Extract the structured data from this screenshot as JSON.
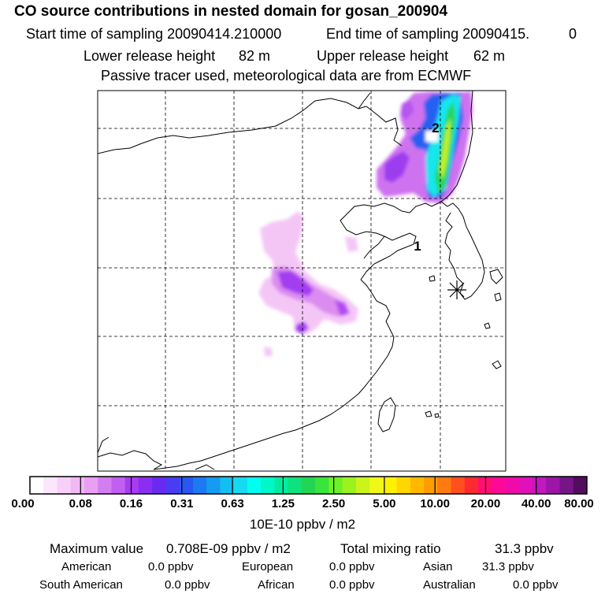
{
  "header": {
    "title": "CO  source contributions in nested domain for gosan_200904",
    "start_label": "Start time of sampling 20090414.210000",
    "end_label": "End time of sampling 20090415.",
    "end_value": "0",
    "lower_label": "Lower release height",
    "lower_value": "82 m",
    "upper_label": "Upper release height",
    "upper_value": "62 m",
    "note": "Passive tracer used, meteorological data are from ECMWF"
  },
  "map": {
    "markers": [
      {
        "label": "1"
      },
      {
        "label": "2"
      }
    ],
    "receptor_symbol": "star-icon"
  },
  "colorbar": {
    "colors": [
      "#ffffff",
      "#fbe6fb",
      "#f7d0f8",
      "#f2b8f5",
      "#e9a0f3",
      "#d27ef0",
      "#c35ff0",
      "#a83cf2",
      "#8a2ef0",
      "#6a2af0",
      "#4a3cf2",
      "#2a57f2",
      "#1a7af2",
      "#159bf0",
      "#13bff0",
      "#16dbf0",
      "#00ffee",
      "#00f7c8",
      "#00eda0",
      "#0ee27c",
      "#22d654",
      "#3be43c",
      "#6ef028",
      "#9bf21e",
      "#cbf41a",
      "#f0f818",
      "#fff200",
      "#ffd600",
      "#ffb800",
      "#ff9c00",
      "#ff7a10",
      "#ff5020",
      "#ff2a30",
      "#ff1070",
      "#ff0a96",
      "#f00aaa",
      "#e011b8",
      "#c218c0",
      "#9c16a8",
      "#761488",
      "#530c5e"
    ],
    "ticks": [
      "0.00",
      "0.08",
      "0.16",
      "0.31",
      "0.63",
      "1.25",
      "2.50",
      "5.00",
      "10.00",
      "20.00",
      "40.00",
      "80.00"
    ],
    "unit": "10E-10 ppbv / m2"
  },
  "stats": {
    "max_label": "Maximum value",
    "max_value": "0.708E-09 ppbv / m2",
    "total_label": "Total mixing ratio",
    "total_value": "31.3 ppbv"
  },
  "regions": [
    {
      "name": "American",
      "value": "0.0 ppbv"
    },
    {
      "name": "European",
      "value": "0.0 ppbv"
    },
    {
      "name": "Asian",
      "value": "31.3 ppbv"
    },
    {
      "name": "South American",
      "value": "0.0 ppbv"
    },
    {
      "name": "African",
      "value": "0.0 ppbv"
    },
    {
      "name": "Australian",
      "value": "0.0 ppbv"
    }
  ]
}
